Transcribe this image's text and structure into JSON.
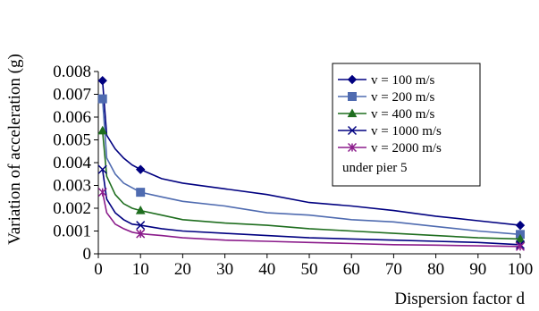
{
  "chart_data": {
    "type": "line",
    "xlabel": "Dispersion factor d",
    "ylabel": "Variation of acceleration (g)",
    "xlim": [
      0,
      100
    ],
    "ylim": [
      0,
      0.008
    ],
    "xticks": [
      0,
      10,
      20,
      30,
      40,
      50,
      60,
      70,
      80,
      90,
      100
    ],
    "yticks": [
      0,
      0.001,
      0.002,
      0.003,
      0.004,
      0.005,
      0.006,
      0.007,
      0.008
    ],
    "ytick_labels": [
      "0",
      "0.001",
      "0.002",
      "0.003",
      "0.004",
      "0.005",
      "0.006",
      "0.007",
      "0.008"
    ],
    "xtick_labels": [
      "0",
      "10",
      "20",
      "30",
      "40",
      "50",
      "60",
      "70",
      "80",
      "90",
      "100"
    ],
    "grid": false,
    "legend_position": "top-right",
    "annotation": "under pier 5",
    "series": [
      {
        "name": "v = 100 m/s",
        "color": "#000080",
        "marker": "diamond",
        "markers": [
          [
            1,
            0.0076
          ],
          [
            10,
            0.0037
          ],
          [
            100,
            0.00125
          ]
        ],
        "curve": [
          [
            1,
            0.0076
          ],
          [
            2,
            0.0052
          ],
          [
            4,
            0.0046
          ],
          [
            6,
            0.0042
          ],
          [
            8,
            0.0039
          ],
          [
            10,
            0.0037
          ],
          [
            15,
            0.0033
          ],
          [
            20,
            0.0031
          ],
          [
            30,
            0.00285
          ],
          [
            40,
            0.0026
          ],
          [
            50,
            0.00225
          ],
          [
            60,
            0.0021
          ],
          [
            70,
            0.0019
          ],
          [
            80,
            0.00165
          ],
          [
            90,
            0.00145
          ],
          [
            100,
            0.00125
          ]
        ]
      },
      {
        "name": "v = 200 m/s",
        "color": "#4F6BB0",
        "marker": "square",
        "markers": [
          [
            1,
            0.0068
          ],
          [
            10,
            0.0027
          ],
          [
            100,
            0.00085
          ]
        ],
        "curve": [
          [
            1,
            0.0068
          ],
          [
            2,
            0.0042
          ],
          [
            4,
            0.0035
          ],
          [
            6,
            0.0031
          ],
          [
            8,
            0.0029
          ],
          [
            10,
            0.0027
          ],
          [
            15,
            0.0025
          ],
          [
            20,
            0.0023
          ],
          [
            30,
            0.0021
          ],
          [
            40,
            0.0018
          ],
          [
            50,
            0.0017
          ],
          [
            60,
            0.0015
          ],
          [
            70,
            0.0014
          ],
          [
            80,
            0.0012
          ],
          [
            90,
            0.001
          ],
          [
            100,
            0.00085
          ]
        ]
      },
      {
        "name": "v = 400 m/s",
        "color": "#1F6E1F",
        "marker": "triangle",
        "markers": [
          [
            1,
            0.0054
          ],
          [
            10,
            0.0019
          ],
          [
            100,
            0.00065
          ]
        ],
        "curve": [
          [
            1,
            0.0054
          ],
          [
            2,
            0.0034
          ],
          [
            4,
            0.0026
          ],
          [
            6,
            0.0022
          ],
          [
            8,
            0.002
          ],
          [
            10,
            0.0019
          ],
          [
            15,
            0.0017
          ],
          [
            20,
            0.0015
          ],
          [
            30,
            0.00135
          ],
          [
            40,
            0.00125
          ],
          [
            50,
            0.0011
          ],
          [
            60,
            0.001
          ],
          [
            70,
            0.0009
          ],
          [
            80,
            0.0008
          ],
          [
            90,
            0.0007
          ],
          [
            100,
            0.00065
          ]
        ]
      },
      {
        "name": "v = 1000 m/s",
        "color": "#000080",
        "marker": "x",
        "markers": [
          [
            1,
            0.0037
          ],
          [
            10,
            0.00125
          ],
          [
            100,
            0.0004
          ]
        ],
        "curve": [
          [
            1,
            0.0037
          ],
          [
            2,
            0.0024
          ],
          [
            4,
            0.0018
          ],
          [
            6,
            0.0015
          ],
          [
            8,
            0.0013
          ],
          [
            10,
            0.00125
          ],
          [
            15,
            0.0011
          ],
          [
            20,
            0.001
          ],
          [
            30,
            0.0009
          ],
          [
            40,
            0.0008
          ],
          [
            50,
            0.0007
          ],
          [
            60,
            0.00065
          ],
          [
            70,
            0.0006
          ],
          [
            80,
            0.00055
          ],
          [
            90,
            0.0005
          ],
          [
            100,
            0.0004
          ]
        ]
      },
      {
        "name": "v = 2000 m/s",
        "color": "#8B1C8B",
        "marker": "asterisk",
        "markers": [
          [
            1,
            0.0027
          ],
          [
            10,
            0.00088
          ],
          [
            100,
            0.00032
          ]
        ],
        "curve": [
          [
            1,
            0.0027
          ],
          [
            2,
            0.0018
          ],
          [
            4,
            0.0013
          ],
          [
            6,
            0.0011
          ],
          [
            8,
            0.00095
          ],
          [
            10,
            0.00088
          ],
          [
            15,
            0.0008
          ],
          [
            20,
            0.0007
          ],
          [
            30,
            0.0006
          ],
          [
            40,
            0.00055
          ],
          [
            50,
            0.0005
          ],
          [
            60,
            0.00045
          ],
          [
            70,
            0.0004
          ],
          [
            80,
            0.00038
          ],
          [
            90,
            0.00035
          ],
          [
            100,
            0.00032
          ]
        ]
      }
    ]
  }
}
